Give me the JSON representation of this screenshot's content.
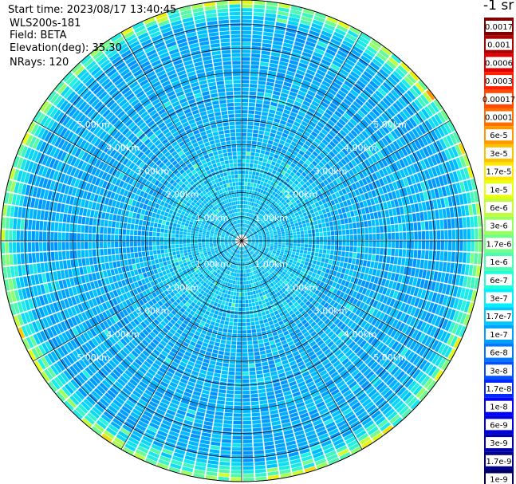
{
  "header": {
    "start_time": "Start time: 2023/08/17 13:40:45",
    "instrument": "WLS200s-181",
    "field": "Field: BETA",
    "elevation": "Elevation(deg): 35.30",
    "nrays": "NRays: 120"
  },
  "colorbar": {
    "unit": "-1 sr",
    "labels": [
      "0.0017",
      "0.001",
      "0.0006",
      "0.0003",
      "0.00017",
      "0.0001",
      "6e-5",
      "3e-5",
      "1.7e-5",
      "1e-5",
      "6e-6",
      "3e-6",
      "1.7e-6",
      "1e-6",
      "6e-7",
      "3e-7",
      "1.7e-7",
      "1e-7",
      "6e-8",
      "3e-8",
      "1.7e-8",
      "1e-8",
      "6e-9",
      "3e-9",
      "1.7e-9",
      "1e-9"
    ],
    "colors": [
      "#800000",
      "#b00000",
      "#e00000",
      "#ff2000",
      "#ff4800",
      "#ff7000",
      "#ff9800",
      "#ffc000",
      "#ffe800",
      "#e8ff10",
      "#c0ff38",
      "#98ff60",
      "#70ff88",
      "#48ffb0",
      "#20ffd8",
      "#00f0ff",
      "#00c8ff",
      "#00a0ff",
      "#0078ff",
      "#0050ff",
      "#0028ff",
      "#0000ff",
      "#0000d8",
      "#0000b0",
      "#000088",
      "#000060"
    ]
  },
  "chart_data": {
    "type": "heatmap",
    "plot_type": "PPI",
    "field": "BETA",
    "units": "-1 sr",
    "nrays": 120,
    "max_range_km": 5.0,
    "range_ring_labels": [
      "1.00km",
      "2.00km",
      "3.00km",
      "4.00km",
      "5.00km"
    ],
    "grid": true,
    "typical_value": "3e-8 to 1e-7",
    "edge_value": "1e-6 to 1e-5"
  }
}
